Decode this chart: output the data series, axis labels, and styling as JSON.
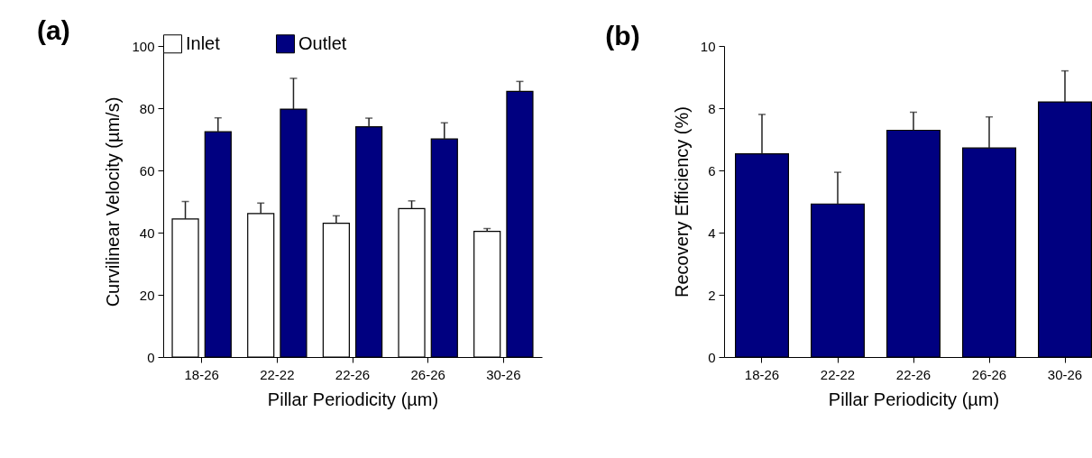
{
  "chart_data": [
    {
      "type": "bar",
      "title": "(a)",
      "xlabel": "Pillar Periodicity (µm)",
      "ylabel": "Curvilinear Velocity (µm/s)",
      "categories": [
        "18-26",
        "22-22",
        "22-26",
        "26-26",
        "30-26"
      ],
      "series": [
        {
          "name": "Inlet",
          "color": "#ffffff",
          "values": [
            44.4,
            46.1,
            43.0,
            47.7,
            40.4
          ],
          "errors": [
            5.6,
            3.4,
            2.4,
            2.5,
            0.9
          ]
        },
        {
          "name": "Outlet",
          "color": "#000080",
          "values": [
            72.4,
            79.7,
            74.0,
            70.1,
            85.4
          ],
          "errors": [
            4.5,
            9.9,
            2.8,
            5.2,
            3.2
          ]
        }
      ],
      "ylim": [
        0,
        100
      ],
      "yticks": [
        0,
        20,
        40,
        60,
        80,
        100
      ],
      "legend": "top"
    },
    {
      "type": "bar",
      "title": "(b)",
      "xlabel": "Pillar Periodicity (µm)",
      "ylabel": "Recovery Efficiency (%)",
      "categories": [
        "18-26",
        "22-22",
        "22-26",
        "26-26",
        "30-26"
      ],
      "values": [
        6.53,
        4.92,
        7.29,
        6.72,
        8.2
      ],
      "errors": [
        1.27,
        1.02,
        0.58,
        1.0,
        1.0
      ],
      "color": "#000080",
      "ylim": [
        0,
        10
      ],
      "yticks": [
        0,
        2,
        4,
        6,
        8,
        10
      ]
    }
  ]
}
